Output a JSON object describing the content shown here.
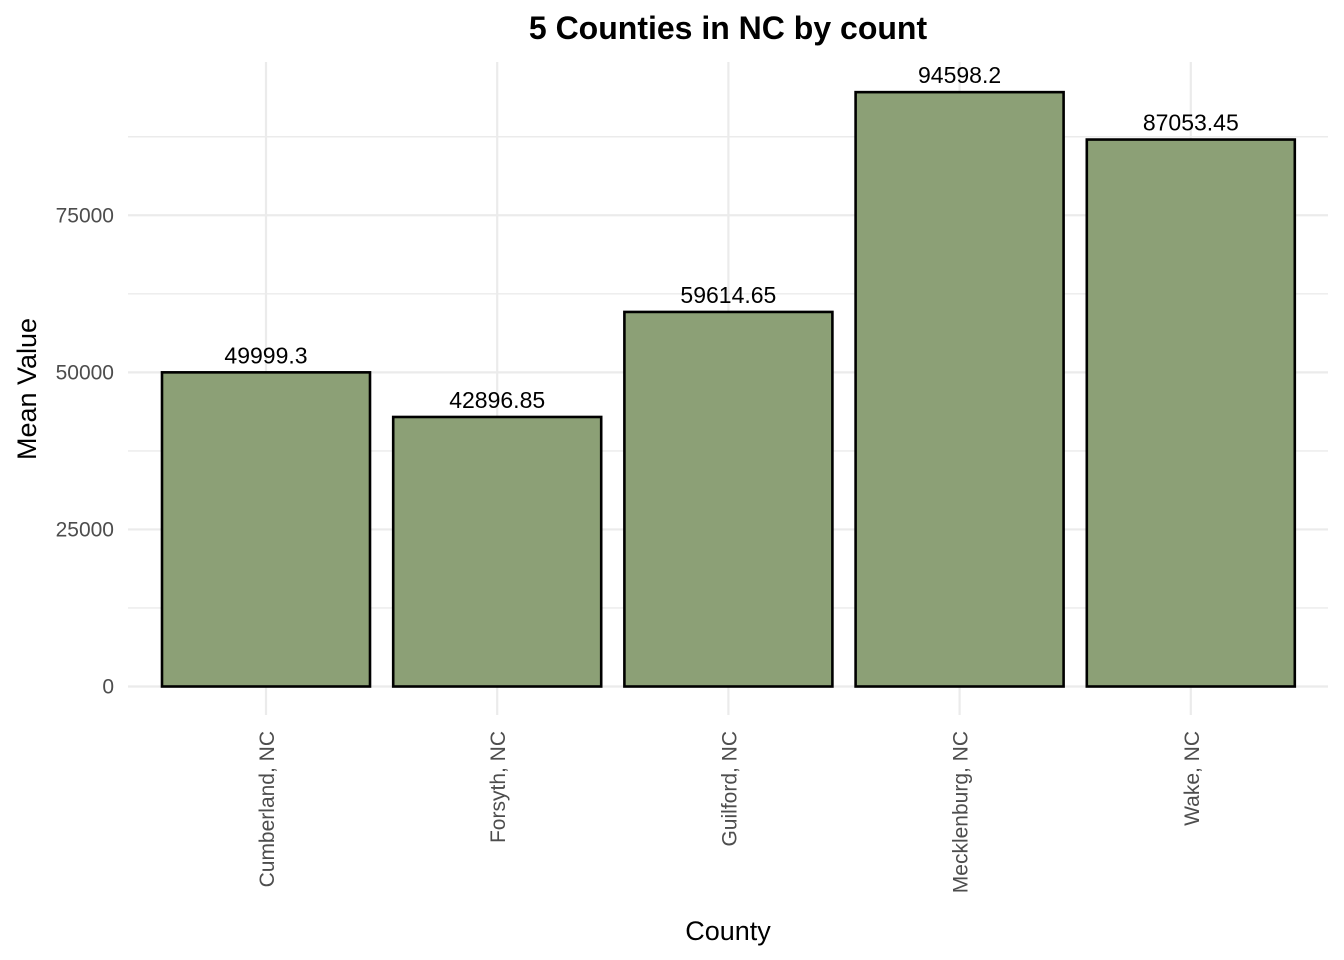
{
  "chart_data": {
    "type": "bar",
    "title": "5 Counties in NC by count",
    "xlabel": "County",
    "ylabel": "Mean Value",
    "categories": [
      "Cumberland, NC",
      "Forsyth, NC",
      "Guilford, NC",
      "Mecklenburg, NC",
      "Wake, NC"
    ],
    "values": [
      49999.3,
      42896.85,
      59614.65,
      94598.2,
      87053.45
    ],
    "data_labels": [
      "49999.3",
      "42896.85",
      "59614.65",
      "94598.2",
      "87053.45"
    ],
    "yticks": [
      0,
      25000,
      50000,
      75000
    ],
    "ytick_labels": [
      "0",
      "25000",
      "50000",
      "75000"
    ],
    "ylim": [
      0,
      99328.1
    ],
    "grid": true,
    "legend": "none",
    "bar_color": "#8ca076",
    "bar_border_color": "#000000",
    "grid_color": "#ebebeb"
  }
}
